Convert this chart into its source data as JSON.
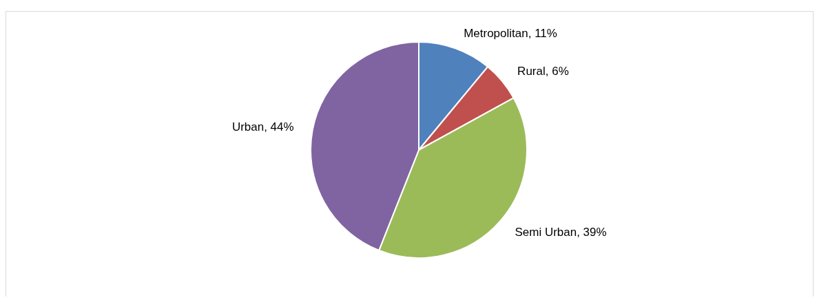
{
  "chart_data": {
    "type": "pie",
    "categories": [
      "Metropolitan",
      "Rural",
      "Semi Urban",
      "Urban"
    ],
    "values": [
      11,
      6,
      39,
      44
    ],
    "colors": [
      "#4f81bd",
      "#c0504d",
      "#9bbb59",
      "#8064a2"
    ],
    "value_labels": [
      "11%",
      "6%",
      "39%",
      "44%"
    ],
    "data_labels": true
  }
}
